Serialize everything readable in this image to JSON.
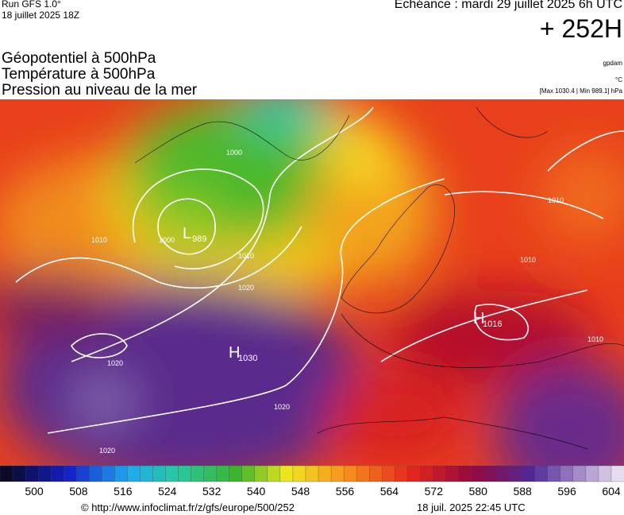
{
  "header": {
    "run": "Run GFS 1.0°",
    "date": "18 juillet 2025 18Z",
    "echeance": "Echéance : mardi 29 juillet 2025 6h UTC",
    "lead": "+ 252H"
  },
  "fields": [
    "Géopotentiel à 500hPa",
    "Température à 500hPa",
    "Pression au niveau de la mer"
  ],
  "units": {
    "geopotential": "gpdam",
    "temperature": "°C",
    "pressure": "[Max 1030.4 | Min 989.1] hPa"
  },
  "centers": [
    {
      "letter": "L",
      "value": "989"
    },
    {
      "letter": "H",
      "value": "1030"
    },
    {
      "letter": "H",
      "value": "1016"
    }
  ],
  "isobar_labels": [
    "1000",
    "1000",
    "1010",
    "1010",
    "1020",
    "1020",
    "1020",
    "1020",
    "1010",
    "1010",
    "1010"
  ],
  "colorbar": {
    "ticks": [
      "500",
      "508",
      "516",
      "524",
      "532",
      "540",
      "548",
      "556",
      "564",
      "572",
      "580",
      "588",
      "596",
      "604"
    ]
  },
  "footer": {
    "url": "© http://www.infoclimat.fr/z/gfs/europe/500/252",
    "timestamp": "18 juil. 2025 22:45 UTC"
  }
}
